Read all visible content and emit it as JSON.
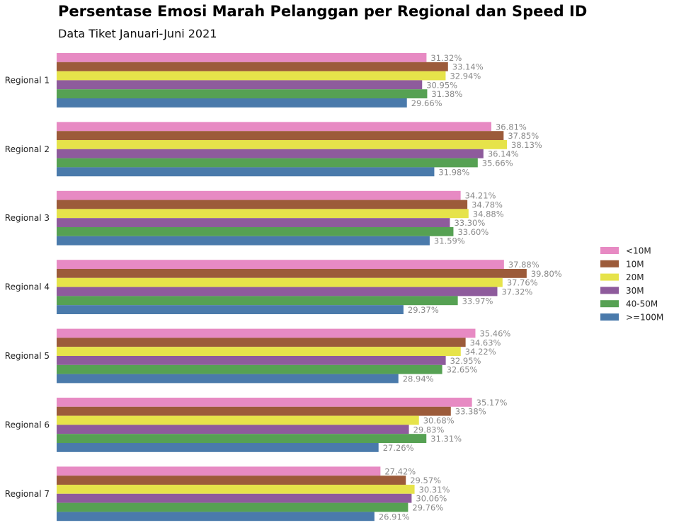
{
  "chart_data": {
    "type": "bar",
    "orientation": "horizontal",
    "title": "Persentase Emosi Marah Pelanggan per Regional dan Speed ID",
    "subtitle": "Data Tiket Januari-Juni 2021",
    "xlabel": "",
    "ylabel": "",
    "xlim": [
      0,
      45
    ],
    "grid": false,
    "legend_position": "right",
    "value_format": "percent-2dp",
    "categories": [
      "Regional 1",
      "Regional 2",
      "Regional 3",
      "Regional 4",
      "Regional 5",
      "Regional 6",
      "Regional 7"
    ],
    "series": [
      {
        "name": "<10M",
        "color": "#e78ac3",
        "values": [
          31.32,
          36.81,
          34.21,
          37.88,
          35.46,
          35.17,
          27.42
        ]
      },
      {
        "name": "10M",
        "color": "#9c5b3a",
        "values": [
          33.14,
          37.85,
          34.78,
          39.8,
          34.63,
          33.38,
          29.57
        ]
      },
      {
        "name": "20M",
        "color": "#e6e34a",
        "values": [
          32.94,
          38.13,
          34.88,
          37.76,
          34.22,
          30.68,
          30.31
        ]
      },
      {
        "name": "30M",
        "color": "#8e5b9c",
        "values": [
          30.95,
          36.14,
          33.3,
          37.32,
          32.95,
          29.83,
          30.06
        ]
      },
      {
        "name": "40-50M",
        "color": "#56a153",
        "values": [
          31.38,
          35.66,
          33.6,
          33.97,
          32.65,
          31.31,
          29.76
        ]
      },
      {
        "name": ">=100M",
        "color": "#4a7aab",
        "values": [
          29.66,
          31.98,
          31.59,
          29.37,
          28.94,
          27.26,
          26.91
        ]
      }
    ]
  }
}
